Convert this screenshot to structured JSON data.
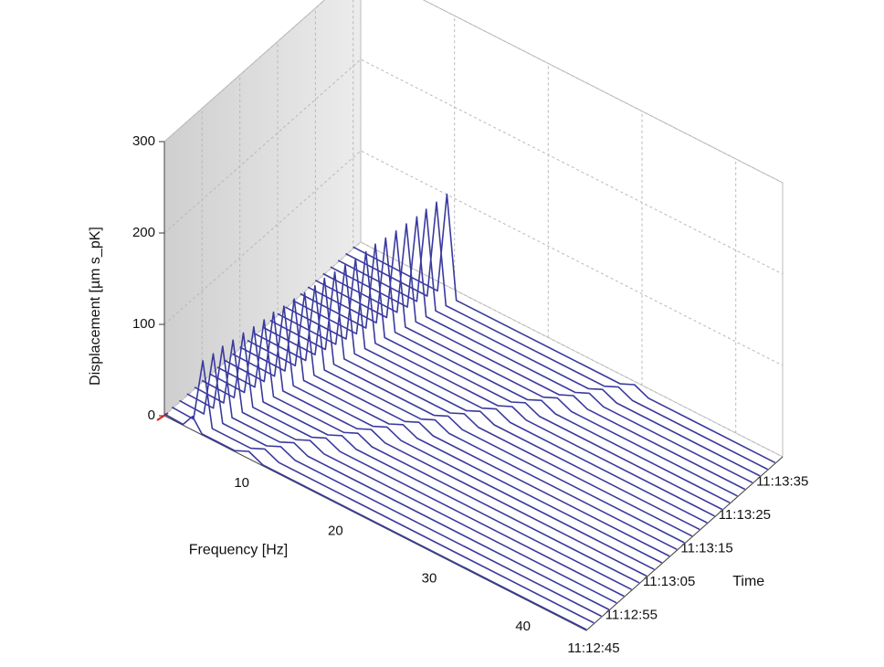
{
  "chart_data": {
    "type": "waterfall",
    "xlabel": "Frequency [Hz]",
    "ylabel": "Displacement [µm s_pK]",
    "zlabel": "Time",
    "xlim": [
      0,
      45
    ],
    "xticks": [
      10,
      20,
      30,
      40
    ],
    "ylim": [
      0,
      300
    ],
    "yticks": [
      0,
      100,
      200,
      300
    ],
    "zlim": [
      "11:12:45",
      "11:13:37"
    ],
    "zticks": [
      "11:12:45",
      "11:12:55",
      "11:13:05",
      "11:13:15",
      "11:13:25",
      "11:13:35"
    ],
    "color": "#3a3a9e",
    "grid": true,
    "traces": [
      {
        "time": "11:12:45",
        "x": [
          0,
          2.0,
          3.0,
          4.0,
          7.5,
          9.0,
          10.5,
          45
        ],
        "values": [
          2,
          1,
          15,
          1,
          1,
          8,
          1,
          1
        ]
      },
      {
        "time": "11:12:47",
        "x": [
          0,
          2.3,
          3.3,
          4.3,
          8.4,
          9.9,
          11.4,
          45
        ],
        "values": [
          2,
          1,
          70,
          1,
          1,
          8,
          1,
          1
        ]
      },
      {
        "time": "11:12:49",
        "x": [
          0,
          2.6,
          3.6,
          4.6,
          9.3,
          10.8,
          12.3,
          45
        ],
        "values": [
          2,
          1,
          72,
          1,
          1,
          8,
          1,
          1
        ]
      },
      {
        "time": "11:12:51",
        "x": [
          0,
          2.8,
          3.8,
          4.8,
          9.9,
          11.4,
          12.9,
          45
        ],
        "values": [
          2,
          1,
          74,
          1,
          1,
          8,
          1,
          1
        ]
      },
      {
        "time": "11:12:53",
        "x": [
          0,
          3.1,
          4.1,
          5.1,
          10.8,
          12.3,
          13.8,
          45
        ],
        "values": [
          2,
          1,
          75,
          1,
          1,
          8,
          1,
          1
        ]
      },
      {
        "time": "11:12:55",
        "x": [
          0,
          3.4,
          4.4,
          5.4,
          11.7,
          13.2,
          14.7,
          45
        ],
        "values": [
          2,
          1,
          77,
          1,
          1,
          8,
          1,
          1
        ]
      },
      {
        "time": "11:12:57",
        "x": [
          0,
          3.7,
          4.7,
          5.7,
          12.6,
          14.1,
          15.6,
          45
        ],
        "values": [
          2,
          1,
          78,
          1,
          1,
          8,
          1,
          1
        ]
      },
      {
        "time": "11:12:59",
        "x": [
          0,
          4.0,
          5.0,
          6.0,
          13.5,
          15.0,
          16.5,
          45
        ],
        "values": [
          2,
          1,
          80,
          1,
          1,
          8,
          1,
          1
        ]
      },
      {
        "time": "11:13:01",
        "x": [
          0,
          4.2,
          5.2,
          6.2,
          14.1,
          15.6,
          17.1,
          45
        ],
        "values": [
          2,
          1,
          82,
          1,
          1,
          8,
          1,
          1
        ]
      },
      {
        "time": "11:13:03",
        "x": [
          0,
          4.5,
          5.5,
          6.5,
          15.0,
          16.5,
          18.0,
          45
        ],
        "values": [
          2,
          1,
          83,
          1,
          1,
          8,
          1,
          1
        ]
      },
      {
        "time": "11:13:05",
        "x": [
          0,
          4.8,
          5.8,
          6.8,
          15.9,
          17.4,
          18.9,
          45
        ],
        "values": [
          2,
          1,
          85,
          1,
          1,
          8,
          1,
          1
        ]
      },
      {
        "time": "11:13:07",
        "x": [
          0,
          5.1,
          6.1,
          7.1,
          16.8,
          18.3,
          19.8,
          45
        ],
        "values": [
          2,
          1,
          86,
          1,
          1,
          8,
          1,
          1
        ]
      },
      {
        "time": "11:13:09",
        "x": [
          0,
          5.4,
          6.4,
          7.4,
          17.7,
          19.2,
          20.7,
          45
        ],
        "values": [
          2,
          1,
          88,
          1,
          1,
          8,
          1,
          1
        ]
      },
      {
        "time": "11:13:11",
        "x": [
          0,
          5.6,
          6.6,
          7.6,
          18.3,
          19.8,
          21.3,
          45
        ],
        "values": [
          2,
          1,
          90,
          1,
          1,
          8,
          1,
          1
        ]
      },
      {
        "time": "11:13:13",
        "x": [
          0,
          5.9,
          6.9,
          7.9,
          19.2,
          20.7,
          22.2,
          45
        ],
        "values": [
          2,
          1,
          91,
          1,
          1,
          8,
          1,
          1
        ]
      },
      {
        "time": "11:13:15",
        "x": [
          0,
          6.2,
          7.2,
          8.2,
          20.1,
          21.6,
          23.1,
          45
        ],
        "values": [
          2,
          1,
          93,
          1,
          1,
          8,
          1,
          1
        ]
      },
      {
        "time": "11:13:17",
        "x": [
          0,
          6.5,
          7.5,
          8.5,
          21.0,
          22.5,
          24.0,
          45
        ],
        "values": [
          2,
          1,
          94,
          1,
          1,
          8,
          1,
          1
        ]
      },
      {
        "time": "11:13:19",
        "x": [
          0,
          6.8,
          7.8,
          8.8,
          21.9,
          23.4,
          24.9,
          45
        ],
        "values": [
          2,
          1,
          96,
          1,
          1,
          8,
          1,
          1
        ]
      },
      {
        "time": "11:13:21",
        "x": [
          0,
          7.0,
          8.0,
          9.0,
          22.5,
          24.0,
          25.5,
          45
        ],
        "values": [
          2,
          1,
          98,
          1,
          1,
          8,
          1,
          1
        ]
      },
      {
        "time": "11:13:23",
        "x": [
          0,
          7.3,
          8.3,
          9.3,
          23.4,
          24.9,
          26.4,
          45
        ],
        "values": [
          2,
          1,
          99,
          1,
          1,
          8,
          1,
          1
        ]
      },
      {
        "time": "11:13:25",
        "x": [
          0,
          7.6,
          8.6,
          9.6,
          24.3,
          25.8,
          27.3,
          45
        ],
        "values": [
          2,
          1,
          101,
          1,
          1,
          8,
          1,
          1
        ]
      },
      {
        "time": "11:13:27",
        "x": [
          0,
          7.9,
          8.9,
          9.9,
          25.2,
          26.7,
          28.2,
          45
        ],
        "values": [
          2,
          1,
          103,
          1,
          1,
          8,
          1,
          1
        ]
      },
      {
        "time": "11:13:29",
        "x": [
          0,
          8.2,
          9.2,
          10.2,
          26.1,
          27.6,
          29.1,
          45
        ],
        "values": [
          2,
          1,
          105,
          1,
          1,
          8,
          1,
          1
        ]
      },
      {
        "time": "11:13:31",
        "x": [
          0,
          8.4,
          9.4,
          10.4,
          26.7,
          28.2,
          29.7,
          45
        ],
        "values": [
          2,
          1,
          107,
          1,
          1,
          8,
          1,
          1
        ]
      },
      {
        "time": "11:13:33",
        "x": [
          0,
          8.7,
          9.7,
          10.7,
          27.6,
          29.1,
          30.6,
          45
        ],
        "values": [
          2,
          1,
          109,
          1,
          1,
          8,
          1,
          1
        ]
      },
      {
        "time": "11:13:35",
        "x": [
          0,
          9.0,
          10.0,
          11.0,
          28.5,
          30.0,
          31.5,
          45
        ],
        "values": [
          2,
          1,
          112,
          1,
          1,
          8,
          1,
          1
        ]
      }
    ]
  }
}
